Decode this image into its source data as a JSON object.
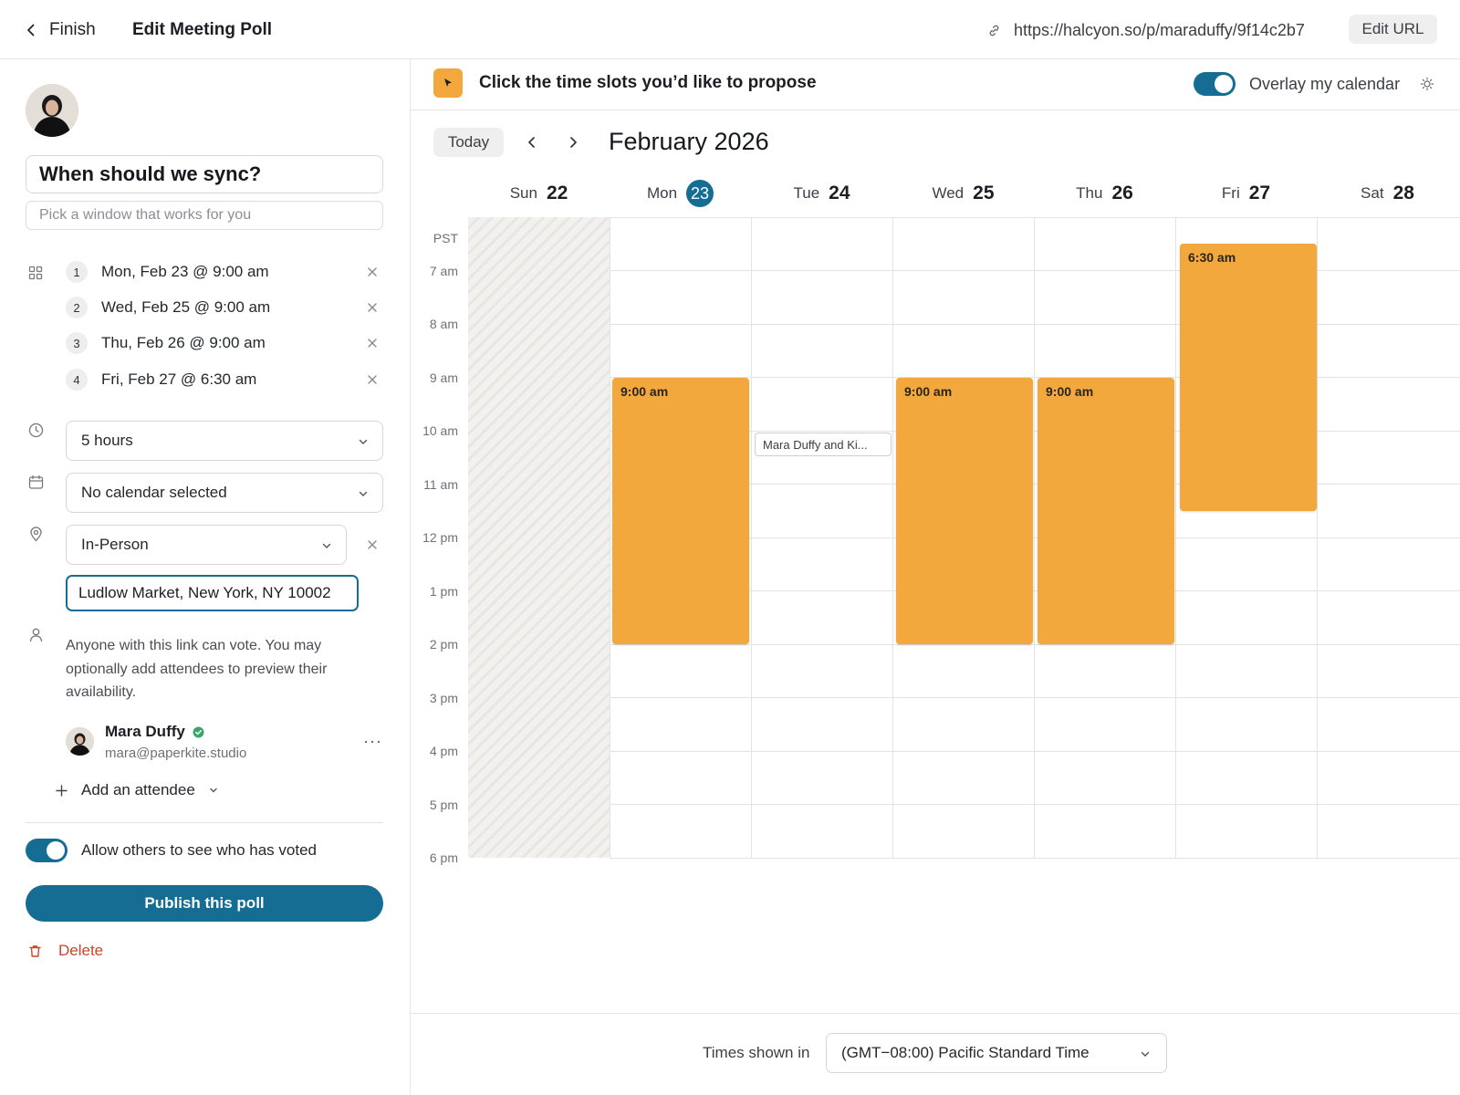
{
  "header": {
    "back_label": "Finish",
    "title": "Edit Meeting Poll",
    "url": "https://halcyon.so/p/maraduffy/9f14c2b7",
    "edit_url_label": "Edit URL"
  },
  "poll": {
    "title": "When should we sync?",
    "subtitle_placeholder": "Pick a window that works for you",
    "slots": [
      {
        "num": "1",
        "label": "Mon, Feb 23 @ 9:00 am"
      },
      {
        "num": "2",
        "label": "Wed, Feb 25 @ 9:00 am"
      },
      {
        "num": "3",
        "label": "Thu, Feb 26 @ 9:00 am"
      },
      {
        "num": "4",
        "label": "Fri, Feb 27 @ 6:30 am"
      }
    ],
    "duration": "5 hours",
    "calendar": "No calendar selected",
    "location_type": "In-Person",
    "location_value": "Ludlow Market, New York, NY 10002",
    "info_text": "Anyone with this link can vote. You may optionally add attendees to preview their availability.",
    "attendee": {
      "name": "Mara Duffy",
      "email": "mara@paperkite.studio",
      "verified": true
    },
    "add_attendee_label": "Add an attendee",
    "allow_label": "Allow others to see who has voted",
    "allow_enabled": true,
    "publish_label": "Publish this poll",
    "delete_label": "Delete"
  },
  "calendar": {
    "instruction": "Click the time slots you’d like to propose",
    "overlay_label": "Overlay my calendar",
    "overlay_enabled": true,
    "today_label": "Today",
    "month_title": "February 2026",
    "timezone_abbr": "PST",
    "days": [
      {
        "dow": "Sun",
        "num": "22"
      },
      {
        "dow": "Mon",
        "num": "23",
        "today": true
      },
      {
        "dow": "Tue",
        "num": "24"
      },
      {
        "dow": "Wed",
        "num": "25"
      },
      {
        "dow": "Thu",
        "num": "26"
      },
      {
        "dow": "Fri",
        "num": "27"
      },
      {
        "dow": "Sat",
        "num": "28"
      }
    ],
    "hours": [
      "7 am",
      "8 am",
      "9 am",
      "10 am",
      "11 am",
      "12 pm",
      "1 pm",
      "2 pm",
      "3 pm",
      "4 pm",
      "5 pm",
      "6 pm"
    ],
    "events": [
      {
        "label": "9:00 am"
      },
      {
        "label": "9:00 am"
      },
      {
        "label": "9:00 am"
      },
      {
        "label": "6:30 am"
      }
    ],
    "busy_event": "Mara Duffy and Ki...",
    "footer_label": "Times shown in",
    "timezone": "(GMT−08:00) Pacific Standard Time"
  },
  "colors": {
    "accent": "#156d94",
    "slot": "#f2a83c",
    "danger": "#c8462b"
  }
}
